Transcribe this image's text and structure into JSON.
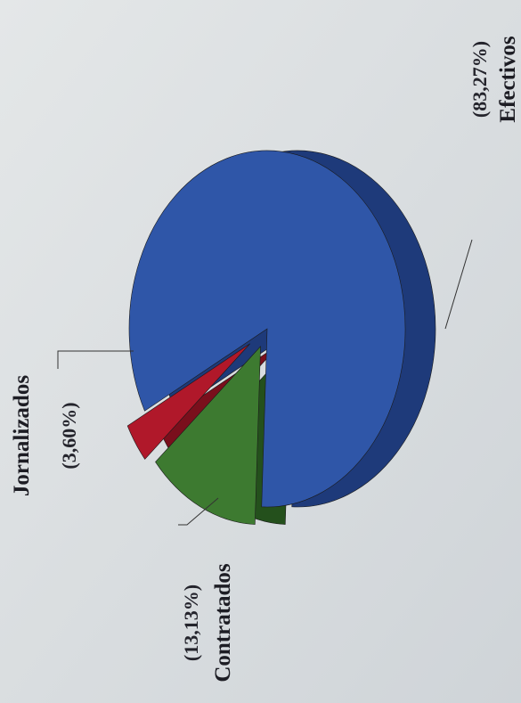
{
  "chart_data": {
    "type": "pie",
    "style": "3d-exploded",
    "orientation": "rotated-90-ccw",
    "slices": [
      {
        "label": "Efectivos",
        "value_text": "(83,27%)",
        "value": 83.27,
        "color": "#2f56a8",
        "side_color": "#1e3a7a"
      },
      {
        "label": "Contratados",
        "value_text": "(13,13%)",
        "value": 13.13,
        "color": "#3d7a30",
        "side_color": "#24501c"
      },
      {
        "label": "Jornalizados",
        "value_text": "(3,60%)",
        "value": 3.6,
        "color": "#b0182a",
        "side_color": "#7a0f1c"
      }
    ]
  }
}
